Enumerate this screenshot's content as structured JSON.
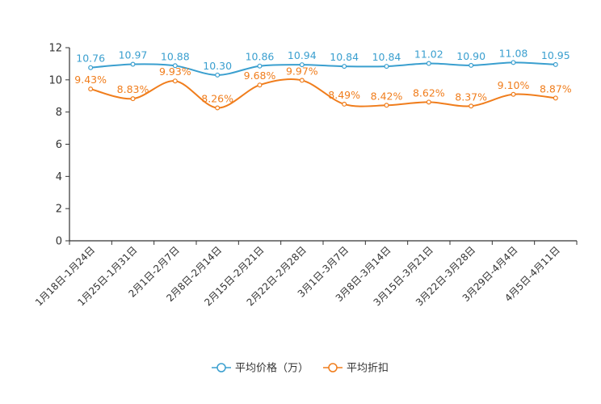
{
  "colors": {
    "price": "#3a9fcf",
    "discount": "#f07d1c",
    "axis": "#333333"
  },
  "chart_data": {
    "type": "line",
    "categories": [
      "1月18日-1月24日",
      "1月25日-1月31日",
      "2月1日-2月7日",
      "2月8日-2月14日",
      "2月15日-2月21日",
      "2月22日-2月28日",
      "3月1日-3月7日",
      "3月8日-3月14日",
      "3月15日-3月21日",
      "3月22日-3月28日",
      "3月29日-4月4日",
      "4月5日-4月11日"
    ],
    "series": [
      {
        "name": "平均价格（万）",
        "values": [
          10.76,
          10.97,
          10.88,
          10.3,
          10.86,
          10.94,
          10.84,
          10.84,
          11.02,
          10.9,
          11.08,
          10.95
        ],
        "labels": [
          "10.76",
          "10.97",
          "10.88",
          "10.30",
          "10.86",
          "10.94",
          "10.84",
          "10.84",
          "11.02",
          "10.90",
          "11.08",
          "10.95"
        ]
      },
      {
        "name": "平均折扣",
        "values": [
          9.43,
          8.83,
          9.93,
          8.26,
          9.68,
          9.97,
          8.49,
          8.42,
          8.62,
          8.37,
          9.1,
          8.87
        ],
        "labels": [
          "9.43%",
          "8.83%",
          "9.93%",
          "8.26%",
          "9.68%",
          "9.97%",
          "8.49%",
          "8.42%",
          "8.62%",
          "8.37%",
          "9.10%",
          "8.87%"
        ]
      }
    ],
    "yticks": [
      "0",
      "2",
      "4",
      "6",
      "8",
      "10",
      "12"
    ],
    "ylim": [
      0,
      12
    ],
    "title": "",
    "xlabel": "",
    "ylabel": "",
    "legend_position": "bottom-center",
    "grid": false
  }
}
